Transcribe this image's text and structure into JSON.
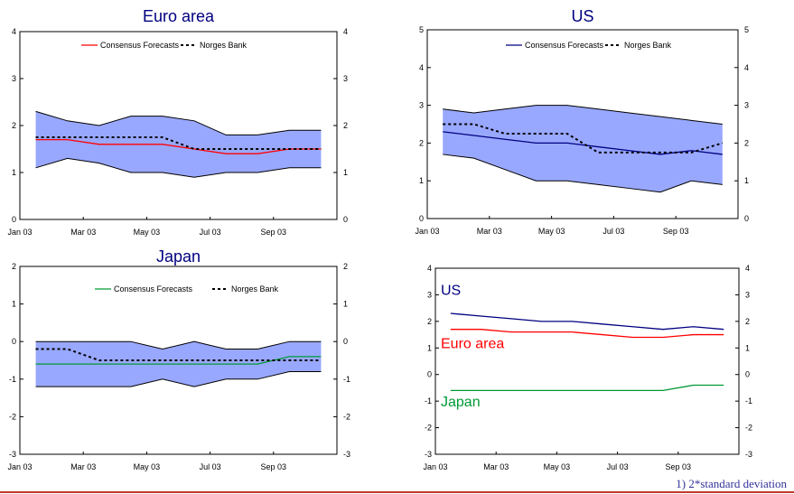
{
  "colors": {
    "band": "#99a8ff",
    "band_edge": "#000000",
    "consensus_euro": "#ff0000",
    "consensus_us": "#000080",
    "consensus_japan": "#009933",
    "norges": "#000000",
    "title": "#000080",
    "rule": "#c0392b"
  },
  "footnote": "1) 2*standard deviation",
  "chart_data": [
    {
      "type": "line",
      "title": "Euro area",
      "x": [
        "Jan 03",
        "Feb 03",
        "Mar 03",
        "Apr 03",
        "May 03",
        "Jun 03",
        "Jul 03",
        "Aug 03",
        "Sep 03",
        "Oct 03"
      ],
      "xticks": [
        "Jan 03",
        "Mar 03",
        "May 03",
        "Jul 03",
        "Sep 03"
      ],
      "ylim": [
        0,
        4
      ],
      "yticks": [
        0,
        1,
        2,
        3,
        4
      ],
      "legend": [
        "Consensus Forecasts",
        "Norges Bank"
      ],
      "band": {
        "upper": [
          2.3,
          2.1,
          2.0,
          2.2,
          2.2,
          2.1,
          1.8,
          1.8,
          1.9,
          1.9
        ],
        "lower": [
          1.1,
          1.3,
          1.2,
          1.0,
          1.0,
          0.9,
          1.0,
          1.0,
          1.1,
          1.1
        ]
      },
      "series": [
        {
          "name": "Consensus Forecasts",
          "values": [
            1.7,
            1.7,
            1.6,
            1.6,
            1.6,
            1.5,
            1.4,
            1.4,
            1.5,
            1.5
          ]
        },
        {
          "name": "Norges Bank",
          "values": [
            1.75,
            1.75,
            1.75,
            1.75,
            1.75,
            1.5,
            1.5,
            1.5,
            1.5,
            1.5
          ]
        }
      ]
    },
    {
      "type": "line",
      "title": "US",
      "x": [
        "Jan 03",
        "Feb 03",
        "Mar 03",
        "Apr 03",
        "May 03",
        "Jun 03",
        "Jul 03",
        "Aug 03",
        "Sep 03",
        "Oct 03"
      ],
      "xticks": [
        "Jan 03",
        "Mar 03",
        "May 03",
        "Jul 03",
        "Sep 03"
      ],
      "ylim": [
        0,
        5
      ],
      "yticks": [
        0,
        1,
        2,
        3,
        4,
        5
      ],
      "legend": [
        "Consensus Forecasts",
        "Norges Bank"
      ],
      "band": {
        "upper": [
          2.9,
          2.8,
          2.9,
          3.0,
          3.0,
          2.9,
          2.8,
          2.7,
          2.6,
          2.5
        ],
        "lower": [
          1.7,
          1.6,
          1.3,
          1.0,
          1.0,
          0.9,
          0.8,
          0.7,
          1.0,
          0.9
        ]
      },
      "series": [
        {
          "name": "Consensus Forecasts",
          "values": [
            2.3,
            2.2,
            2.1,
            2.0,
            2.0,
            1.9,
            1.8,
            1.7,
            1.8,
            1.7
          ]
        },
        {
          "name": "Norges Bank",
          "values": [
            2.5,
            2.5,
            2.25,
            2.25,
            2.25,
            1.75,
            1.75,
            1.75,
            1.75,
            2.0
          ]
        }
      ]
    },
    {
      "type": "line",
      "title": "Japan",
      "x": [
        "Jan 03",
        "Feb 03",
        "Mar 03",
        "Apr 03",
        "May 03",
        "Jun 03",
        "Jul 03",
        "Aug 03",
        "Sep 03",
        "Oct 03"
      ],
      "xticks": [
        "Jan 03",
        "Mar 03",
        "May 03",
        "Jul 03",
        "Sep 03"
      ],
      "ylim": [
        -3,
        2
      ],
      "yticks": [
        -3,
        -2,
        -1,
        0,
        1,
        2
      ],
      "legend": [
        "Consensus Forecasts",
        "Norges Bank"
      ],
      "band": {
        "upper": [
          0.0,
          0.0,
          0.0,
          0.0,
          -0.2,
          0.0,
          -0.2,
          -0.2,
          0.0,
          0.0
        ],
        "lower": [
          -1.2,
          -1.2,
          -1.2,
          -1.2,
          -1.0,
          -1.2,
          -1.0,
          -1.0,
          -0.8,
          -0.8
        ]
      },
      "series": [
        {
          "name": "Consensus Forecasts",
          "values": [
            -0.6,
            -0.6,
            -0.6,
            -0.6,
            -0.6,
            -0.6,
            -0.6,
            -0.6,
            -0.4,
            -0.4
          ]
        },
        {
          "name": "Norges Bank",
          "values": [
            -0.2,
            -0.2,
            -0.5,
            -0.5,
            -0.5,
            -0.5,
            -0.5,
            -0.5,
            -0.5,
            -0.5
          ]
        }
      ]
    },
    {
      "type": "line",
      "title": "",
      "x": [
        "Jan 03",
        "Feb 03",
        "Mar 03",
        "Apr 03",
        "May 03",
        "Jun 03",
        "Jul 03",
        "Aug 03",
        "Sep 03",
        "Oct 03"
      ],
      "xticks": [
        "Jan 03",
        "Mar 03",
        "May 03",
        "Jul 03",
        "Sep 03"
      ],
      "ylim": [
        -3,
        4
      ],
      "yticks": [
        -3,
        -2,
        -1,
        0,
        1,
        2,
        3,
        4
      ],
      "annotations": [
        {
          "text": "US",
          "color": "#000080",
          "at": [
            0,
            3.0
          ]
        },
        {
          "text": "Euro area",
          "color": "#ff0000",
          "at": [
            0,
            1.0
          ]
        },
        {
          "text": "Japan",
          "color": "#009933",
          "at": [
            0,
            -1.2
          ]
        }
      ],
      "series": [
        {
          "name": "US",
          "values": [
            2.3,
            2.2,
            2.1,
            2.0,
            2.0,
            1.9,
            1.8,
            1.7,
            1.8,
            1.7
          ]
        },
        {
          "name": "Euro area",
          "values": [
            1.7,
            1.7,
            1.6,
            1.6,
            1.6,
            1.5,
            1.4,
            1.4,
            1.5,
            1.5
          ]
        },
        {
          "name": "Japan",
          "values": [
            -0.6,
            -0.6,
            -0.6,
            -0.6,
            -0.6,
            -0.6,
            -0.6,
            -0.6,
            -0.4,
            -0.4
          ]
        }
      ]
    }
  ]
}
